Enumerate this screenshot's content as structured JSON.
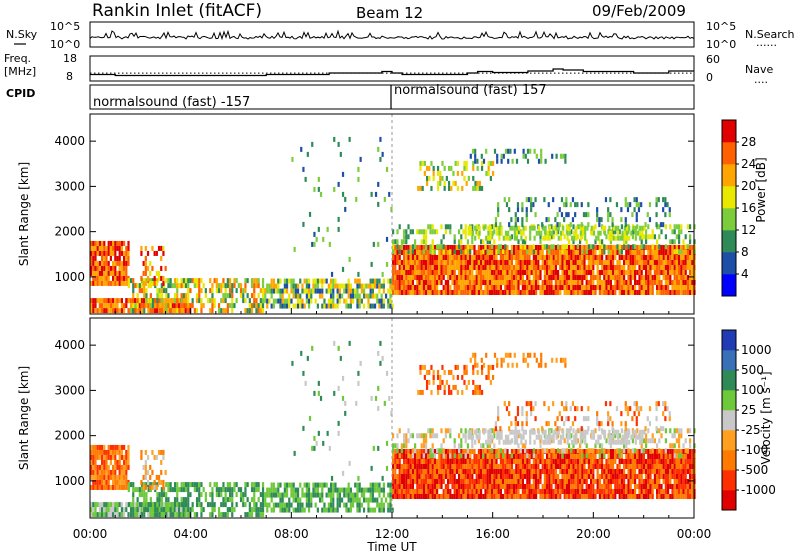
{
  "header": {
    "station": "Rankin Inlet (fitACF)",
    "beam": "Beam 12",
    "date": "09/Feb/2009"
  },
  "labels": {
    "nsky": "N.Sky",
    "nsearch": "N.Search",
    "nsearch_marker": "......",
    "freq": "Freq.",
    "freq_unit": "[MHz]",
    "nave": "Nave",
    "nave_marker": "....",
    "cpid": "CPID",
    "n_tick_high": "10^5",
    "n_tick_low": "10^0",
    "freq_tick_high": "18",
    "freq_tick_low": "8",
    "nave_tick_high": "60",
    "nave_tick_low": "0",
    "ylabel": "Slant Range [km]",
    "xlabel": "Time UT",
    "power_label": "Power [dB]",
    "velocity_label": "Velocity [m s⁻¹]"
  },
  "cpid_segments": [
    {
      "label": "normalsound (fast) -157",
      "start_hour": 0,
      "end_hour": 12
    },
    {
      "label": "normalsound (fast) 157",
      "start_hour": 12,
      "end_hour": 24
    }
  ],
  "chart_data": [
    {
      "type": "heatmap",
      "title": "Power",
      "xlabel": "Time UT",
      "ylabel": "Slant Range [km]",
      "x_ticks": [
        "00:00",
        "04:00",
        "08:00",
        "12:00",
        "16:00",
        "20:00",
        "00:00"
      ],
      "x_range_hours": [
        0,
        24
      ],
      "y_ticks": [
        1000,
        2000,
        3000,
        4000
      ],
      "y_range_km": [
        180,
        4600
      ],
      "colorbar": {
        "label": "Power [dB]",
        "ticks": [
          4,
          8,
          12,
          16,
          20,
          24,
          28
        ],
        "range": [
          0,
          32
        ],
        "colors": [
          "#0000ff",
          "#1e4fa8",
          "#2e8b57",
          "#7ccd3c",
          "#e8e800",
          "#ffa500",
          "#ff6000",
          "#e00000"
        ]
      }
    },
    {
      "type": "heatmap",
      "title": "Velocity",
      "xlabel": "Time UT",
      "ylabel": "Slant Range [km]",
      "x_ticks": [
        "00:00",
        "04:00",
        "08:00",
        "12:00",
        "16:00",
        "20:00",
        "00:00"
      ],
      "x_range_hours": [
        0,
        24
      ],
      "y_ticks": [
        1000,
        2000,
        3000,
        4000
      ],
      "y_range_km": [
        180,
        4600
      ],
      "colorbar": {
        "label": "Velocity [m s⁻¹]",
        "ticks": [
          "1000",
          "500",
          "100",
          "25",
          "-25",
          "-100",
          "-500",
          "-1000"
        ],
        "colors": [
          "#1f3cb4",
          "#3a70b8",
          "#2e8b57",
          "#6dc83a",
          "#c8c8c8",
          "#ffa020",
          "#ff7a00",
          "#ff3000",
          "#e00000"
        ]
      }
    },
    {
      "type": "line",
      "title": "N.Sky / N.Search",
      "y_ticks": [
        "10^0",
        "10^5"
      ]
    },
    {
      "type": "line",
      "title": "Freq / Nave",
      "freq_ticks_mhz": [
        8,
        18
      ],
      "nave_ticks": [
        0,
        60
      ],
      "freq_steps": [
        {
          "start_hour": 0.0,
          "end_hour": 1.0,
          "mhz": 10.6
        },
        {
          "start_hour": 1.0,
          "end_hour": 7.0,
          "mhz": 10.2
        },
        {
          "start_hour": 7.0,
          "end_hour": 9.5,
          "mhz": 10.6
        },
        {
          "start_hour": 9.5,
          "end_hour": 11.6,
          "mhz": 11.2
        },
        {
          "start_hour": 11.6,
          "end_hour": 12.0,
          "mhz": 11.8
        },
        {
          "start_hour": 12.0,
          "end_hour": 12.4,
          "mhz": 11.2
        },
        {
          "start_hour": 12.4,
          "end_hour": 15.0,
          "mhz": 10.6
        },
        {
          "start_hour": 15.0,
          "end_hour": 15.4,
          "mhz": 11.2
        },
        {
          "start_hour": 15.4,
          "end_hour": 16.0,
          "mhz": 11.8
        },
        {
          "start_hour": 16.0,
          "end_hour": 17.4,
          "mhz": 11.4
        },
        {
          "start_hour": 17.4,
          "end_hour": 18.4,
          "mhz": 12.0
        },
        {
          "start_hour": 18.4,
          "end_hour": 18.8,
          "mhz": 12.8
        },
        {
          "start_hour": 18.8,
          "end_hour": 19.6,
          "mhz": 12.4
        },
        {
          "start_hour": 19.6,
          "end_hour": 21.6,
          "mhz": 11.8
        },
        {
          "start_hour": 21.6,
          "end_hour": 23.0,
          "mhz": 11.2
        },
        {
          "start_hour": 23.0,
          "end_hour": 24.0,
          "mhz": 12.0
        }
      ],
      "nave_value": 19
    }
  ]
}
